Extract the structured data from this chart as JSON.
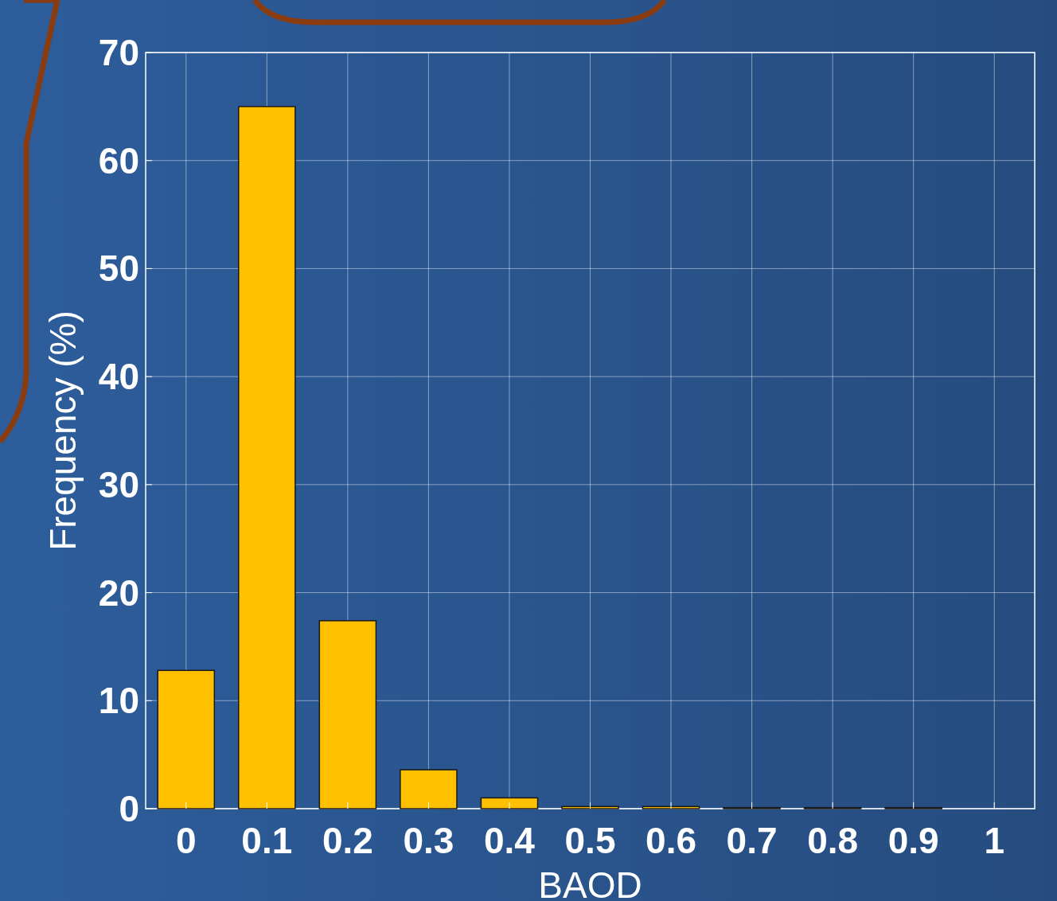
{
  "chart_data": {
    "type": "bar",
    "xlabel": "BAOD",
    "ylabel": "Frequency (%)",
    "x": [
      0,
      0.1,
      0.2,
      0.3,
      0.4,
      0.5,
      0.6,
      0.7,
      0.8,
      0.9,
      1
    ],
    "values": [
      12.8,
      65.0,
      17.4,
      3.6,
      1.0,
      0.2,
      0.2,
      0.1,
      0.1,
      0.1,
      0.0
    ],
    "color": "#ffc000",
    "xlim": [
      -0.05,
      1.05
    ],
    "xticks": [
      0,
      0.1,
      0.2,
      0.3,
      0.4,
      0.5,
      0.6,
      0.7,
      0.8,
      0.9,
      1
    ],
    "ylim": [
      0,
      70
    ],
    "yticks": [
      0,
      10,
      20,
      30,
      40,
      50,
      60,
      70
    ],
    "grid": true
  }
}
